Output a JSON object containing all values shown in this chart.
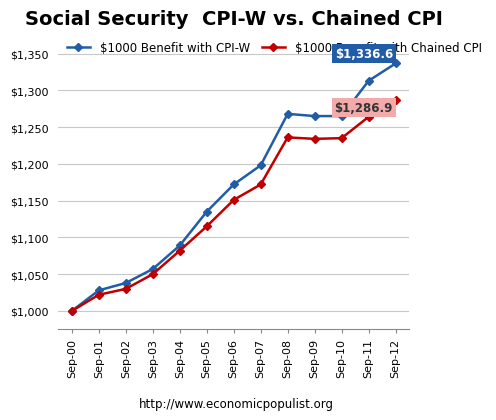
{
  "title": "Social Security  CPI-W vs. Chained CPI",
  "source": "http://www.economicpopulist.org",
  "x_labels": [
    "Sep-00",
    "Sep-01",
    "Sep-02",
    "Sep-03",
    "Sep-04",
    "Sep-05",
    "Sep-06",
    "Sep-07",
    "Sep-08",
    "Sep-09",
    "Sep-10",
    "Sep-11",
    "Sep-12"
  ],
  "cpiw_values": [
    1000,
    1028,
    1038,
    1057,
    1089,
    1135,
    1172,
    1198,
    1268,
    1265,
    1265,
    1313,
    1336.6
  ],
  "chained_values": [
    1000,
    1022,
    1030,
    1050,
    1082,
    1115,
    1151,
    1172,
    1236,
    1234,
    1235,
    1264,
    1286.9
  ],
  "cpiw_color": "#215DA6",
  "chained_color": "#C00000",
  "cpiw_label": "$1000 Benefit with CPI-W",
  "chained_label": "$1000 Benefit with Chained CPI",
  "cpiw_end_label": "$1,336.6",
  "chained_end_label": "$1,286.9",
  "ylim_min": 975,
  "ylim_max": 1375,
  "yticks": [
    1000,
    1050,
    1100,
    1150,
    1200,
    1250,
    1300,
    1350
  ],
  "background_color": "#FFFFFF",
  "grid_color": "#C8C8C8",
  "title_fontsize": 14,
  "legend_fontsize": 8.5,
  "tick_fontsize": 8,
  "source_fontsize": 8.5
}
